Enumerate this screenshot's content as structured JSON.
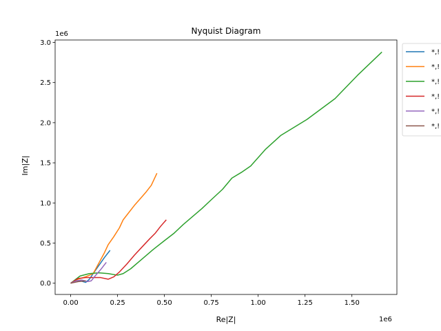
{
  "chart_data": {
    "type": "line",
    "title": "Nyquist Diagram",
    "xlabel": "Re|Z|",
    "ylabel": "Im|Z|",
    "x_offset_label": "1e6",
    "y_offset_label": "1e6",
    "xlim": [
      -0.083,
      1.74
    ],
    "ylim": [
      -0.14,
      3.03
    ],
    "xticks": [
      0.0,
      0.25,
      0.5,
      0.75,
      1.0,
      1.25,
      1.5
    ],
    "xtick_labels": [
      "0.00",
      "0.25",
      "0.50",
      "0.75",
      "1.00",
      "1.25",
      "1.50"
    ],
    "yticks": [
      0.0,
      0.5,
      1.0,
      1.5,
      2.0,
      2.5,
      3.0
    ],
    "ytick_labels": [
      "0.0",
      "0.5",
      "1.0",
      "1.5",
      "2.0",
      "2.5",
      "3.0"
    ],
    "grid": false,
    "legend_position": "outside-top-right",
    "series": [
      {
        "name": "*,!",
        "color": "#1f77b4",
        "x": [
          0.0,
          0.02,
          0.05,
          0.08,
          0.1,
          0.12,
          0.15,
          0.18,
          0.21
        ],
        "y": [
          0.0,
          0.03,
          0.03,
          0.01,
          0.05,
          0.12,
          0.22,
          0.32,
          0.41
        ]
      },
      {
        "name": "*,!",
        "color": "#ff7f0e",
        "x": [
          0.0,
          0.04,
          0.08,
          0.12,
          0.15,
          0.18,
          0.2,
          0.23,
          0.26,
          0.28,
          0.31,
          0.34,
          0.37,
          0.4,
          0.43,
          0.46
        ],
        "y": [
          0.0,
          0.05,
          0.08,
          0.12,
          0.25,
          0.38,
          0.48,
          0.58,
          0.69,
          0.79,
          0.88,
          0.97,
          1.05,
          1.13,
          1.22,
          1.37
        ]
      },
      {
        "name": "*,!",
        "color": "#2ca02c",
        "x": [
          0.0,
          0.05,
          0.1,
          0.15,
          0.2,
          0.25,
          0.28,
          0.32,
          0.38,
          0.44,
          0.5,
          0.55,
          0.6,
          0.65,
          0.7,
          0.75,
          0.81,
          0.86,
          0.91,
          0.96,
          1.04,
          1.12,
          1.26,
          1.41,
          1.53,
          1.66
        ],
        "y": [
          0.0,
          0.09,
          0.12,
          0.13,
          0.12,
          0.1,
          0.12,
          0.18,
          0.3,
          0.42,
          0.53,
          0.62,
          0.73,
          0.83,
          0.93,
          1.04,
          1.17,
          1.31,
          1.38,
          1.46,
          1.67,
          1.84,
          2.04,
          2.3,
          2.59,
          2.88
        ]
      },
      {
        "name": "*,!",
        "color": "#d62728",
        "x": [
          0.0,
          0.04,
          0.08,
          0.12,
          0.16,
          0.2,
          0.23,
          0.26,
          0.3,
          0.34,
          0.38,
          0.42,
          0.45,
          0.48,
          0.51
        ],
        "y": [
          0.0,
          0.06,
          0.07,
          0.07,
          0.07,
          0.05,
          0.08,
          0.14,
          0.24,
          0.35,
          0.45,
          0.55,
          0.62,
          0.71,
          0.79
        ]
      },
      {
        "name": "*,!",
        "color": "#9467bd",
        "x": [
          0.0,
          0.03,
          0.06,
          0.09,
          0.11,
          0.13,
          0.16,
          0.19
        ],
        "y": [
          0.0,
          0.03,
          0.04,
          0.02,
          0.03,
          0.09,
          0.17,
          0.26
        ]
      },
      {
        "name": "*,!",
        "color": "#8c564b",
        "x": [
          0.0,
          0.04,
          0.08
        ],
        "y": [
          0.0,
          0.02,
          0.03
        ]
      }
    ]
  }
}
